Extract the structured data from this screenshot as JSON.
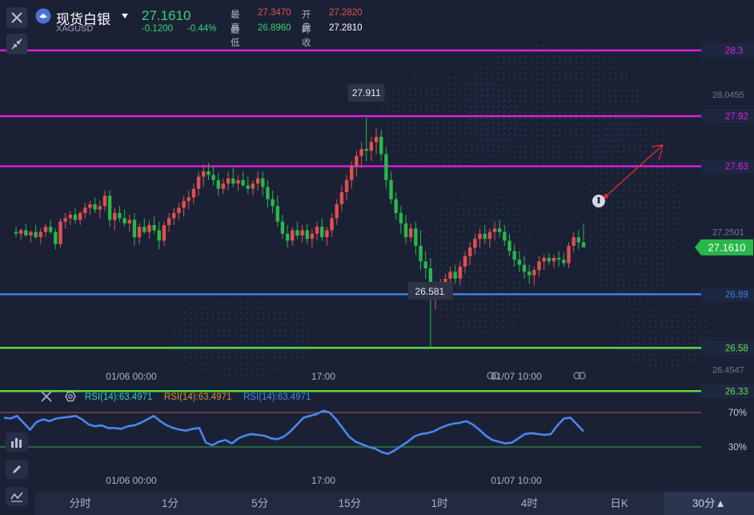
{
  "header": {
    "name": "现货白银",
    "code": "XAGUSD",
    "price": "27.1610",
    "change": "-0.1200",
    "change_pct": "-0.44%",
    "high_label": "最高",
    "high_value": "27.3470",
    "open_label": "开盘",
    "open_value": "27.2820",
    "low_label": "最低",
    "low_value": "26.8960",
    "prev_close_label": "昨收",
    "prev_close_value": "27.2810"
  },
  "colors": {
    "background": "#1b2135",
    "up": "#e05050",
    "down": "#28b84a",
    "magenta": "#e01ee0",
    "blue": "#3d7fe0",
    "green": "#5ee04a",
    "rsi": "#4a86f0",
    "price_tag": "#28b84a"
  },
  "icons": {
    "close": "close-icon",
    "shrink": "collapse-arrows-icon",
    "symbol": "silver-logo-icon",
    "dropdown": "caret-down-icon",
    "info": "info-icon",
    "settings": "gear-icon",
    "chart_tool": "bar-chart-icon",
    "pen": "pencil-icon",
    "indicator": "indicator-icon",
    "link": "link-icon"
  },
  "chart_data": {
    "type": "candlestick",
    "symbol": "XAGUSD",
    "y_axis_ticks": [
      "28.0455",
      "27.2501",
      "26.4547"
    ],
    "horizontal_lines": [
      {
        "price": 28.3,
        "label": "28.3",
        "color": "#e01ee0"
      },
      {
        "price": 27.92,
        "label": "27.92",
        "color": "#e01ee0"
      },
      {
        "price": 27.63,
        "label": "27.63",
        "color": "#e01ee0"
      },
      {
        "price": 26.89,
        "label": "26.89",
        "color": "#3d7fe0"
      },
      {
        "price": 26.58,
        "label": "26.58",
        "color": "#5ee04a"
      },
      {
        "price": 26.33,
        "label": "26.33",
        "color": "#5ee04a"
      }
    ],
    "current_price_tag": "27.1610",
    "high_marker": "27.911",
    "low_marker": "26.581",
    "x_labels": [
      "01/06 00:00",
      "17:00",
      "01/07 10:00"
    ],
    "candles": [
      [
        27.25,
        27.28,
        27.22,
        27.24
      ],
      [
        27.24,
        27.27,
        27.2,
        27.26
      ],
      [
        27.26,
        27.3,
        27.22,
        27.23
      ],
      [
        27.23,
        27.26,
        27.19,
        27.25
      ],
      [
        27.25,
        27.29,
        27.21,
        27.22
      ],
      [
        27.22,
        27.27,
        27.18,
        27.25
      ],
      [
        27.25,
        27.3,
        27.22,
        27.28
      ],
      [
        27.28,
        27.32,
        27.24,
        27.25
      ],
      [
        27.25,
        27.27,
        27.15,
        27.18
      ],
      [
        27.18,
        27.33,
        27.16,
        27.31
      ],
      [
        27.31,
        27.36,
        27.27,
        27.33
      ],
      [
        27.33,
        27.37,
        27.29,
        27.35
      ],
      [
        27.35,
        27.39,
        27.3,
        27.32
      ],
      [
        27.32,
        27.37,
        27.29,
        27.36
      ],
      [
        27.36,
        27.42,
        27.33,
        27.39
      ],
      [
        27.39,
        27.43,
        27.35,
        27.41
      ],
      [
        27.41,
        27.45,
        27.36,
        27.38
      ],
      [
        27.38,
        27.43,
        27.33,
        27.4
      ],
      [
        27.4,
        27.49,
        27.37,
        27.46
      ],
      [
        27.46,
        27.49,
        27.28,
        27.32
      ],
      [
        27.32,
        27.39,
        27.26,
        27.36
      ],
      [
        27.36,
        27.4,
        27.31,
        27.33
      ],
      [
        27.33,
        27.38,
        27.28,
        27.3
      ],
      [
        27.3,
        27.35,
        27.25,
        27.32
      ],
      [
        27.32,
        27.36,
        27.17,
        27.22
      ],
      [
        27.22,
        27.3,
        27.18,
        27.28
      ],
      [
        27.28,
        27.33,
        27.24,
        27.25
      ],
      [
        27.25,
        27.32,
        27.21,
        27.29
      ],
      [
        27.29,
        27.34,
        27.24,
        27.26
      ],
      [
        27.26,
        27.31,
        27.15,
        27.2
      ],
      [
        27.2,
        27.31,
        27.17,
        27.29
      ],
      [
        27.29,
        27.36,
        27.25,
        27.33
      ],
      [
        27.33,
        27.39,
        27.29,
        27.36
      ],
      [
        27.36,
        27.42,
        27.32,
        27.39
      ],
      [
        27.39,
        27.46,
        27.34,
        27.43
      ],
      [
        27.43,
        27.49,
        27.38,
        27.45
      ],
      [
        27.45,
        27.53,
        27.41,
        27.5
      ],
      [
        27.5,
        27.6,
        27.46,
        27.57
      ],
      [
        27.57,
        27.64,
        27.51,
        27.6
      ],
      [
        27.6,
        27.65,
        27.55,
        27.58
      ],
      [
        27.58,
        27.63,
        27.52,
        27.55
      ],
      [
        27.55,
        27.59,
        27.46,
        27.5
      ],
      [
        27.5,
        27.56,
        27.47,
        27.53
      ],
      [
        27.53,
        27.6,
        27.49,
        27.56
      ],
      [
        27.56,
        27.62,
        27.51,
        27.53
      ],
      [
        27.53,
        27.58,
        27.49,
        27.55
      ],
      [
        27.55,
        27.6,
        27.51,
        27.52
      ],
      [
        27.52,
        27.57,
        27.47,
        27.5
      ],
      [
        27.5,
        27.55,
        27.46,
        27.53
      ],
      [
        27.53,
        27.6,
        27.49,
        27.56
      ],
      [
        27.56,
        27.6,
        27.46,
        27.51
      ],
      [
        27.51,
        27.55,
        27.39,
        27.44
      ],
      [
        27.44,
        27.49,
        27.36,
        27.4
      ],
      [
        27.4,
        27.46,
        27.28,
        27.31
      ],
      [
        27.31,
        27.35,
        27.21,
        27.24
      ],
      [
        27.24,
        27.29,
        27.16,
        27.2
      ],
      [
        27.2,
        27.28,
        27.17,
        27.26
      ],
      [
        27.26,
        27.31,
        27.21,
        27.23
      ],
      [
        27.23,
        27.29,
        27.19,
        27.26
      ],
      [
        27.26,
        27.3,
        27.18,
        27.21
      ],
      [
        27.21,
        27.27,
        27.16,
        27.24
      ],
      [
        27.24,
        27.31,
        27.2,
        27.28
      ],
      [
        27.28,
        27.33,
        27.2,
        27.22
      ],
      [
        27.22,
        27.28,
        27.17,
        27.26
      ],
      [
        27.26,
        27.36,
        27.22,
        27.33
      ],
      [
        27.33,
        27.44,
        27.29,
        27.41
      ],
      [
        27.41,
        27.52,
        27.37,
        27.48
      ],
      [
        27.48,
        27.58,
        27.43,
        27.55
      ],
      [
        27.55,
        27.66,
        27.5,
        27.63
      ],
      [
        27.63,
        27.72,
        27.57,
        27.69
      ],
      [
        27.69,
        27.77,
        27.62,
        27.73
      ],
      [
        27.73,
        27.911,
        27.66,
        27.72
      ],
      [
        27.72,
        27.8,
        27.66,
        27.77
      ],
      [
        27.77,
        27.85,
        27.7,
        27.8
      ],
      [
        27.8,
        27.84,
        27.66,
        27.7
      ],
      [
        27.7,
        27.74,
        27.5,
        27.55
      ],
      [
        27.55,
        27.6,
        27.41,
        27.44
      ],
      [
        27.44,
        27.48,
        27.32,
        27.36
      ],
      [
        27.36,
        27.4,
        27.24,
        27.3
      ],
      [
        27.3,
        27.35,
        27.18,
        27.22
      ],
      [
        27.22,
        27.3,
        27.19,
        27.27
      ],
      [
        27.27,
        27.31,
        27.12,
        27.17
      ],
      [
        27.17,
        27.26,
        27.03,
        27.08
      ],
      [
        27.08,
        27.14,
        26.98,
        27.04
      ],
      [
        27.04,
        27.1,
        26.581,
        26.86
      ],
      [
        26.86,
        26.95,
        26.8,
        26.92
      ],
      [
        26.92,
        26.98,
        26.87,
        26.94
      ],
      [
        26.94,
        27.01,
        26.89,
        26.98
      ],
      [
        26.98,
        27.05,
        26.93,
        27.02
      ],
      [
        27.02,
        27.06,
        26.95,
        26.98
      ],
      [
        26.98,
        27.08,
        26.94,
        27.05
      ],
      [
        27.05,
        27.14,
        27.01,
        27.11
      ],
      [
        27.11,
        27.19,
        27.06,
        27.16
      ],
      [
        27.16,
        27.24,
        27.12,
        27.21
      ],
      [
        27.21,
        27.27,
        27.16,
        27.24
      ],
      [
        27.24,
        27.29,
        27.18,
        27.21
      ],
      [
        27.21,
        27.27,
        27.16,
        27.25
      ],
      [
        27.25,
        27.31,
        27.2,
        27.27
      ],
      [
        27.27,
        27.32,
        27.22,
        27.25
      ],
      [
        27.25,
        27.29,
        27.17,
        27.2
      ],
      [
        27.2,
        27.24,
        27.11,
        27.14
      ],
      [
        27.14,
        27.18,
        27.05,
        27.09
      ],
      [
        27.09,
        27.14,
        27.02,
        27.06
      ],
      [
        27.06,
        27.11,
        26.98,
        27.02
      ],
      [
        27.02,
        27.06,
        26.95,
        27.0
      ],
      [
        27.0,
        27.05,
        26.94,
        27.03
      ],
      [
        27.03,
        27.11,
        26.99,
        27.08
      ],
      [
        27.08,
        27.12,
        27.03,
        27.1
      ],
      [
        27.1,
        27.13,
        27.06,
        27.08
      ],
      [
        27.08,
        27.12,
        27.04,
        27.1
      ],
      [
        27.1,
        27.14,
        27.05,
        27.09
      ],
      [
        27.09,
        27.13,
        27.05,
        27.07
      ],
      [
        27.07,
        27.19,
        27.04,
        27.17
      ],
      [
        27.17,
        27.25,
        27.13,
        27.22
      ],
      [
        27.22,
        27.26,
        27.15,
        27.19
      ],
      [
        27.19,
        27.3,
        27.17,
        27.161
      ]
    ]
  },
  "rsi": {
    "label": "RSI(14):63.4971",
    "labels": [
      "RSI(14):63.4971",
      "RSI(14):63.4971",
      "RSI(14):63.4971"
    ],
    "label_colors": [
      "#36c9cf",
      "#e08a3a",
      "#4a86f0"
    ],
    "level_high": "70%",
    "level_low": "30%",
    "x_labels": [
      "01/06 00:00",
      "17:00",
      "01/07 10:00"
    ],
    "values": [
      64,
      63,
      66,
      58,
      50,
      59,
      62,
      60,
      63,
      64,
      65,
      66,
      62,
      56,
      54,
      55,
      52,
      52,
      51,
      54,
      55,
      58,
      62,
      66,
      60,
      55,
      52,
      50,
      49,
      51,
      52,
      35,
      32,
      36,
      38,
      34,
      40,
      43,
      45,
      44,
      43,
      40,
      39,
      42,
      48,
      56,
      64,
      66,
      68,
      72,
      70,
      62,
      52,
      42,
      36,
      33,
      30,
      28,
      24,
      22,
      26,
      31,
      36,
      42,
      45,
      46,
      48,
      52,
      55,
      57,
      58,
      60,
      56,
      50,
      43,
      38,
      36,
      34,
      35,
      40,
      45,
      46,
      45,
      44,
      45,
      55,
      63,
      64,
      56,
      48
    ]
  },
  "timeframes": [
    "分时",
    "1分",
    "5分",
    "15分",
    "1时",
    "4时",
    "日K",
    "30分▲"
  ],
  "active_timeframe": "30分▲"
}
